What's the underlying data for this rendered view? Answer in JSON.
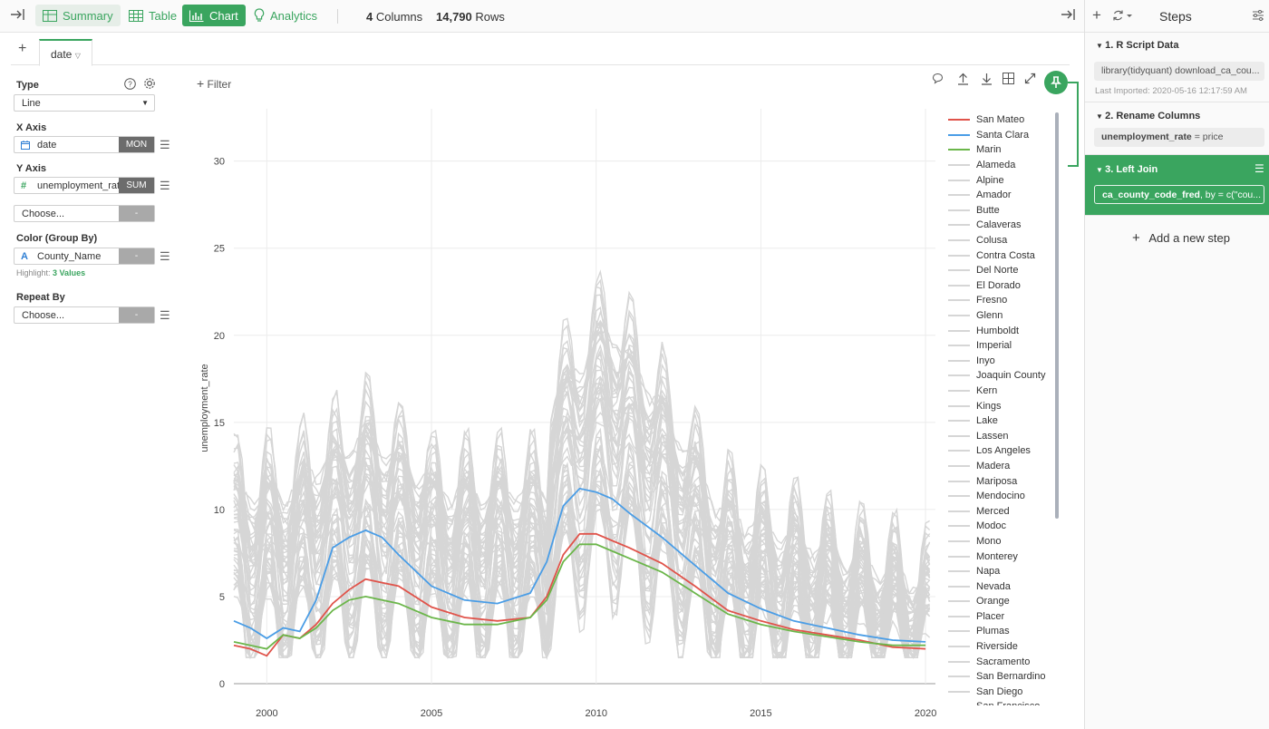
{
  "toolbar": {
    "views": [
      "Summary",
      "Table",
      "Chart",
      "Analytics"
    ],
    "columns_count": "4",
    "columns_label": "Columns",
    "rows_count": "14,790",
    "rows_label": "Rows"
  },
  "tabs": {
    "active": "date"
  },
  "config": {
    "type_label": "Type",
    "type_value": "Line",
    "x_axis_label": "X Axis",
    "x_axis_field": "date",
    "x_axis_agg": "MON",
    "y_axis_label": "Y Axis",
    "y_axis_field": "unemployment_rate",
    "y_axis_agg": "SUM",
    "extra_placeholder": "Choose...",
    "color_label": "Color (Group By)",
    "color_field": "County_Name",
    "highlight_prefix": "Highlight:",
    "highlight_value": "3 Values",
    "repeat_label": "Repeat By",
    "repeat_placeholder": "Choose...",
    "dash": "-"
  },
  "filter_label": "Filter",
  "steps": {
    "title": "Steps",
    "items": [
      {
        "title": "1. R Script Data",
        "code": "library(tidyquant) download_ca_cou...",
        "meta": "Last Imported: 2020-05-16 12:17:59 AM"
      },
      {
        "title": "2. Rename Columns",
        "code_bold": "unemployment_rate",
        "code_rest": " = price"
      },
      {
        "title": "3. Left Join",
        "code_bold": "ca_county_code_fred",
        "code_rest": ", by = c(\"cou..."
      }
    ],
    "add_label": "Add a new step"
  },
  "colors": {
    "accent": "#3aa55f",
    "san_mateo": "#e0534a",
    "santa_clara": "#4a9de6",
    "marin": "#6bb64a",
    "other": "#d6d6d6"
  },
  "chart_data": {
    "type": "line",
    "xlabel": "",
    "ylabel": "unemployment_rate",
    "xlim": [
      1999,
      2020.3
    ],
    "ylim": [
      0,
      33
    ],
    "x_ticks": [
      2000,
      2005,
      2010,
      2015,
      2020
    ],
    "y_ticks": [
      0,
      5,
      10,
      15,
      20,
      25,
      30
    ],
    "grid": true,
    "legend_position": "right",
    "highlighted_series": [
      {
        "name": "San Mateo",
        "color": "#e0534a",
        "x": [
          1999,
          1999.5,
          2000,
          2000.5,
          2001,
          2001.5,
          2002,
          2002.5,
          2003,
          2003.5,
          2004,
          2005,
          2006,
          2007,
          2008,
          2008.5,
          2009,
          2009.5,
          2010,
          2010.5,
          2011,
          2012,
          2013,
          2014,
          2015,
          2016,
          2017,
          2018,
          2019,
          2020
        ],
        "values": [
          2.2,
          2.0,
          1.6,
          2.8,
          2.6,
          3.4,
          4.6,
          5.4,
          6.0,
          5.8,
          5.6,
          4.4,
          3.8,
          3.6,
          3.8,
          5.0,
          7.4,
          8.6,
          8.6,
          8.2,
          7.8,
          6.9,
          5.6,
          4.2,
          3.6,
          3.1,
          2.8,
          2.5,
          2.1,
          2.0
        ]
      },
      {
        "name": "Santa Clara",
        "color": "#4a9de6",
        "x": [
          1999,
          1999.5,
          2000,
          2000.5,
          2001,
          2001.5,
          2002,
          2002.5,
          2003,
          2003.5,
          2004,
          2005,
          2006,
          2007,
          2008,
          2008.5,
          2009,
          2009.5,
          2010,
          2010.5,
          2011,
          2012,
          2013,
          2014,
          2015,
          2016,
          2017,
          2018,
          2019,
          2020
        ],
        "values": [
          3.6,
          3.2,
          2.6,
          3.2,
          3.0,
          4.8,
          7.8,
          8.4,
          8.8,
          8.4,
          7.4,
          5.6,
          4.8,
          4.6,
          5.2,
          7.0,
          10.2,
          11.2,
          11.0,
          10.6,
          9.8,
          8.4,
          6.8,
          5.2,
          4.3,
          3.6,
          3.2,
          2.8,
          2.5,
          2.4
        ]
      },
      {
        "name": "Marin",
        "color": "#6bb64a",
        "x": [
          1999,
          1999.5,
          2000,
          2000.5,
          2001,
          2001.5,
          2002,
          2002.5,
          2003,
          2003.5,
          2004,
          2005,
          2006,
          2007,
          2008,
          2008.5,
          2009,
          2009.5,
          2010,
          2010.5,
          2011,
          2012,
          2013,
          2014,
          2015,
          2016,
          2017,
          2018,
          2019,
          2020
        ],
        "values": [
          2.4,
          2.2,
          2.0,
          2.8,
          2.6,
          3.2,
          4.2,
          4.8,
          5.0,
          4.8,
          4.6,
          3.8,
          3.4,
          3.4,
          3.8,
          4.8,
          7.0,
          8.0,
          8.0,
          7.6,
          7.2,
          6.4,
          5.2,
          4.0,
          3.4,
          3.0,
          2.7,
          2.4,
          2.2,
          2.2
        ]
      }
    ],
    "legend": [
      "San Mateo",
      "Santa Clara",
      "Marin",
      "Alameda",
      "Alpine",
      "Amador",
      "Butte",
      "Calaveras",
      "Colusa",
      "Contra Costa",
      "Del Norte",
      "El Dorado",
      "Fresno",
      "Glenn",
      "Humboldt",
      "Imperial",
      "Inyo",
      "Joaquin County",
      "Kern",
      "Kings",
      "Lake",
      "Lassen",
      "Los Angeles",
      "Madera",
      "Mariposa",
      "Mendocino",
      "Merced",
      "Modoc",
      "Mono",
      "Monterey",
      "Napa",
      "Nevada",
      "Orange",
      "Placer",
      "Plumas",
      "Riverside",
      "Sacramento",
      "San Bernardino",
      "San Diego",
      "San Francisco"
    ]
  }
}
